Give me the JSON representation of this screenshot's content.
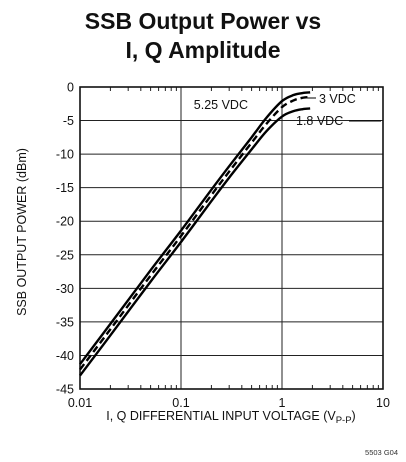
{
  "chart_data": {
    "type": "line",
    "title_line1": "SSB Output Power vs",
    "title_line2": "I, Q Amplitude",
    "xlabel": "I, Q DIFFERENTIAL INPUT VOLTAGE (V",
    "xlabel_sub": "P-P",
    "xlabel_end": ")",
    "ylabel": "SSB OUTPUT POWER (dBm)",
    "x_scale": "log",
    "xlim": [
      0.01,
      10
    ],
    "ylim": [
      -45,
      0
    ],
    "x_ticks": [
      "0.01",
      "0.1",
      "1",
      "10"
    ],
    "x_tick_values": [
      0.01,
      0.1,
      1,
      10
    ],
    "y_ticks": [
      "0",
      "-5",
      "-10",
      "-15",
      "-20",
      "-25",
      "-30",
      "-35",
      "-40",
      "-45"
    ],
    "y_tick_values": [
      0,
      -5,
      -10,
      -15,
      -20,
      -25,
      -30,
      -35,
      -40,
      -45
    ],
    "grid": true,
    "series": [
      {
        "name": "5.25 VDC",
        "style": "solid",
        "x": [
          0.01,
          0.02,
          0.05,
          0.1,
          0.2,
          0.3,
          0.5,
          0.7,
          1.0,
          1.3,
          1.6,
          1.9
        ],
        "y": [
          -41.3,
          -35.3,
          -27.3,
          -21.4,
          -15.3,
          -11.8,
          -7.5,
          -4.6,
          -2.1,
          -1.2,
          -0.9,
          -0.8
        ]
      },
      {
        "name": "3 VDC",
        "style": "dashed",
        "x": [
          0.01,
          0.02,
          0.05,
          0.1,
          0.2,
          0.3,
          0.5,
          0.7,
          1.0,
          1.3,
          1.6,
          1.9
        ],
        "y": [
          -42.1,
          -36.1,
          -28.1,
          -22.2,
          -16.1,
          -12.6,
          -8.3,
          -5.5,
          -3.0,
          -2.0,
          -1.6,
          -1.5
        ]
      },
      {
        "name": "1.8 VDC",
        "style": "solid",
        "x": [
          0.01,
          0.02,
          0.05,
          0.1,
          0.2,
          0.3,
          0.5,
          0.7,
          1.0,
          1.3,
          1.6,
          1.9
        ],
        "y": [
          -43.0,
          -37.0,
          -29.0,
          -23.1,
          -17.0,
          -13.5,
          -9.3,
          -6.6,
          -4.4,
          -3.6,
          -3.3,
          -3.2
        ]
      }
    ],
    "annotations": {
      "v525": "5.25 VDC",
      "v3": "3 VDC",
      "v18": "1.8 VDC"
    },
    "figure_number": "5503 G04"
  }
}
